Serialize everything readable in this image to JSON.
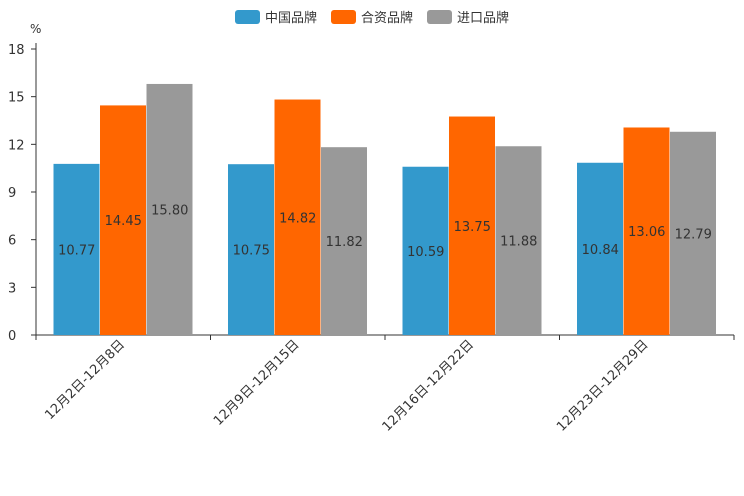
{
  "chart_data": {
    "type": "bar",
    "unit": "%",
    "categories": [
      "12月2日-12月8日",
      "12月9日-12月15日",
      "12月16日-12月22日",
      "12月23日-12月29日"
    ],
    "series": [
      {
        "name": "中国品牌",
        "color": "#3399cc",
        "values": [
          10.77,
          10.75,
          10.59,
          10.84
        ],
        "labels": [
          "10.77",
          "10.75",
          "10.59",
          "10.84"
        ]
      },
      {
        "name": "合资品牌",
        "color": "#ff6600",
        "values": [
          14.45,
          14.82,
          13.75,
          13.06
        ],
        "labels": [
          "14.45",
          "14.82",
          "13.75",
          "13.06"
        ]
      },
      {
        "name": "进口品牌",
        "color": "#999999",
        "values": [
          15.8,
          11.82,
          11.88,
          12.79
        ],
        "labels": [
          "15.80",
          "11.82",
          "11.88",
          "12.79"
        ]
      }
    ],
    "yticks": [
      "0",
      "3",
      "6",
      "9",
      "12",
      "15",
      "18"
    ],
    "ylim": [
      0,
      18
    ],
    "legend_position": "top-center",
    "grid": false
  }
}
